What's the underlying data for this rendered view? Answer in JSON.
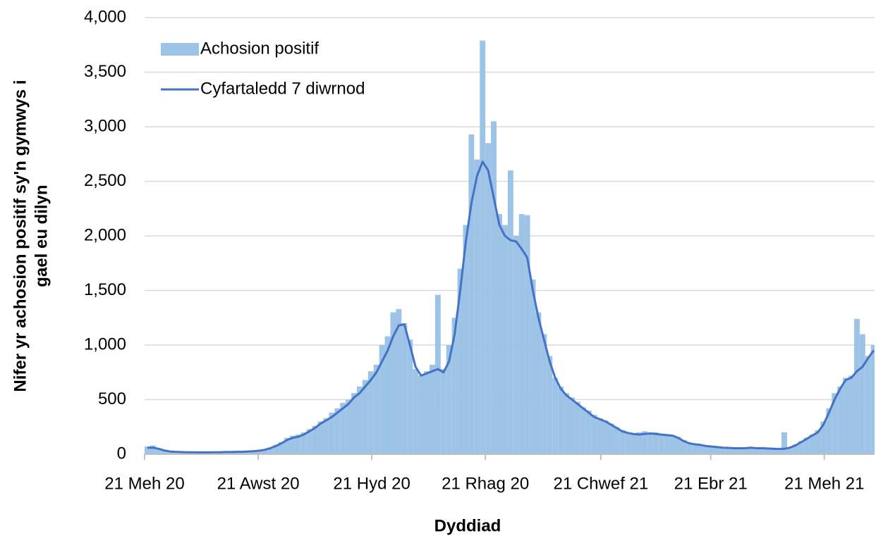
{
  "chart_data": {
    "type": "bar-line",
    "ylabel_lines": [
      "Nifer yr achosion positif sy'n gymwys i",
      "gael eu dilyn"
    ],
    "xlabel": "Dyddiad",
    "x": [
      0,
      3,
      6,
      9,
      12,
      15,
      18,
      21,
      24,
      27,
      30,
      33,
      36,
      39,
      42,
      45,
      48,
      51,
      54,
      57,
      60,
      63,
      66,
      69,
      72,
      75,
      78,
      81,
      84,
      87,
      90,
      93,
      96,
      99,
      102,
      105,
      108,
      111,
      114,
      117,
      120,
      123,
      126,
      129,
      132,
      135,
      138,
      141,
      144,
      147,
      150,
      153,
      156,
      159,
      162,
      165,
      168,
      171,
      174,
      177,
      180,
      183,
      186,
      189,
      192,
      195,
      198,
      201,
      204,
      207,
      210,
      213,
      216,
      219,
      222,
      225,
      228,
      231,
      234,
      237,
      240,
      243,
      246,
      249,
      252,
      255,
      258,
      261,
      264,
      267,
      270,
      273,
      276,
      279,
      282,
      285,
      288,
      291,
      294,
      297,
      300,
      303,
      306,
      309,
      312,
      315,
      318,
      321,
      324,
      327,
      330,
      333,
      336,
      339,
      342,
      345,
      348,
      351,
      354,
      357,
      360,
      363,
      366,
      369,
      372,
      375,
      378,
      381,
      384,
      387,
      390
    ],
    "series": [
      {
        "name": "Achosion positif",
        "type": "bar",
        "color": "#9dc3e6",
        "values": [
          70,
          80,
          55,
          35,
          28,
          24,
          22,
          20,
          19,
          18,
          18,
          19,
          20,
          18,
          22,
          21,
          24,
          23,
          27,
          30,
          35,
          45,
          60,
          85,
          110,
          150,
          170,
          180,
          200,
          230,
          260,
          300,
          330,
          380,
          420,
          470,
          500,
          560,
          620,
          680,
          760,
          820,
          1000,
          1080,
          1300,
          1330,
          1200,
          1050,
          780,
          720,
          760,
          820,
          1460,
          780,
          1000,
          1250,
          1700,
          2100,
          2930,
          2700,
          3790,
          2850,
          3050,
          2200,
          2100,
          2600,
          2000,
          2200,
          2190,
          1600,
          1300,
          1100,
          900,
          700,
          620,
          560,
          520,
          480,
          430,
          400,
          360,
          330,
          310,
          280,
          250,
          220,
          200,
          190,
          200,
          210,
          190,
          200,
          185,
          180,
          170,
          160,
          130,
          105,
          95,
          88,
          80,
          72,
          68,
          62,
          60,
          58,
          56,
          58,
          65,
          58,
          56,
          54,
          52,
          50,
          200,
          62,
          90,
          120,
          150,
          180,
          220,
          300,
          420,
          560,
          620,
          700,
          720,
          1240,
          1100,
          900,
          1000
        ]
      },
      {
        "name": "Cyfartaledd 7 diwrnod",
        "type": "line",
        "color": "#4472c4",
        "values": [
          60,
          60,
          50,
          35,
          25,
          22,
          20,
          18,
          18,
          17,
          17,
          17,
          18,
          18,
          20,
          20,
          22,
          22,
          25,
          28,
          32,
          40,
          55,
          75,
          100,
          130,
          150,
          160,
          180,
          210,
          240,
          280,
          310,
          340,
          380,
          420,
          460,
          520,
          560,
          620,
          680,
          750,
          850,
          950,
          1080,
          1180,
          1190,
          1000,
          800,
          720,
          740,
          760,
          780,
          750,
          850,
          1100,
          1500,
          1950,
          2300,
          2550,
          2680,
          2600,
          2350,
          2100,
          2000,
          1960,
          1950,
          1880,
          1800,
          1500,
          1250,
          1050,
          850,
          700,
          600,
          540,
          500,
          460,
          420,
          380,
          340,
          320,
          300,
          270,
          240,
          210,
          195,
          185,
          180,
          185,
          190,
          185,
          180,
          175,
          170,
          150,
          120,
          100,
          90,
          85,
          75,
          70,
          65,
          60,
          58,
          55,
          55,
          55,
          60,
          55,
          55,
          52,
          50,
          48,
          50,
          60,
          80,
          110,
          140,
          170,
          200,
          270,
          380,
          500,
          600,
          680,
          700,
          760,
          800,
          880,
          950
        ]
      }
    ],
    "bar_width": 3,
    "xlim": [
      0,
      392
    ],
    "xticks": [
      {
        "value": 0,
        "label": "21 Meh 20"
      },
      {
        "value": 61,
        "label": "21 Awst 20"
      },
      {
        "value": 122,
        "label": "21 Hyd 20"
      },
      {
        "value": 183,
        "label": "21 Rhag 20"
      },
      {
        "value": 245,
        "label": "21 Chwef 21"
      },
      {
        "value": 304,
        "label": "21 Ebr 21"
      },
      {
        "value": 365,
        "label": "21 Meh 21"
      }
    ],
    "ylim": [
      0,
      4000
    ],
    "yticks": [
      0,
      500,
      {
        "value": 1000,
        "label": "1,000"
      },
      {
        "value": 1500,
        "label": "1,500"
      },
      {
        "value": 2000,
        "label": "2,000"
      },
      {
        "value": 2500,
        "label": "2,500"
      },
      {
        "value": 3000,
        "label": "3,000"
      },
      {
        "value": 3500,
        "label": "3,500"
      },
      {
        "value": 4000,
        "label": "4,000"
      }
    ],
    "grid": true,
    "legend": "top-left"
  }
}
